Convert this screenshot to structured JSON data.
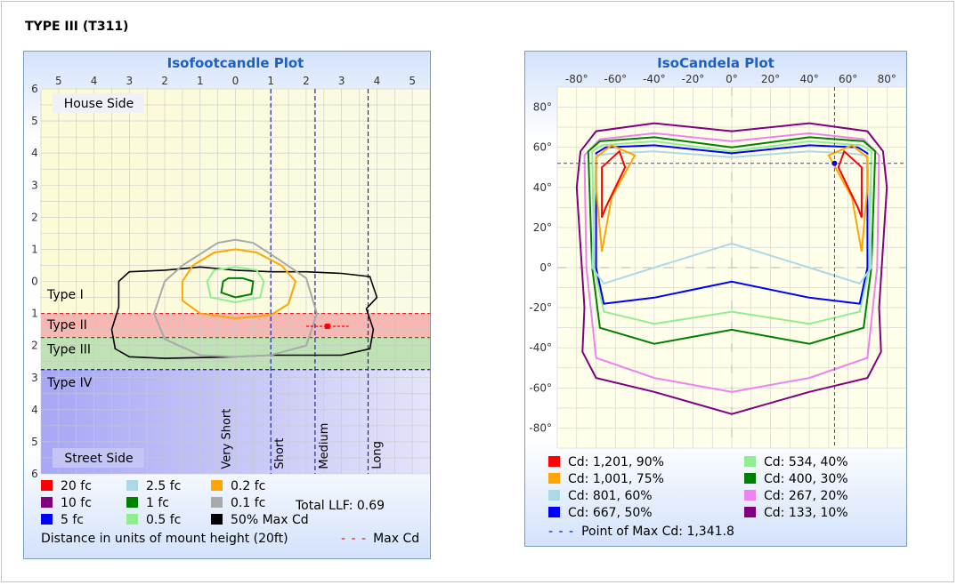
{
  "page": {
    "title": "TYPE III (T311)"
  },
  "isofootcandle": {
    "title": "Isofootcandle Plot",
    "region_labels": {
      "house": "House Side",
      "street": "Street Side"
    },
    "type_labels": [
      "Type I",
      "Type II",
      "Type III",
      "Type IV"
    ],
    "range_labels": [
      "Very Short",
      "Short",
      "Medium",
      "Long"
    ],
    "legend": [
      {
        "label": "20 fc",
        "color": "#ff0000"
      },
      {
        "label": "10 fc",
        "color": "#800080"
      },
      {
        "label": "5 fc",
        "color": "#0000ff"
      },
      {
        "label": "2.5 fc",
        "color": "#add8e6"
      },
      {
        "label": "1 fc",
        "color": "#008000"
      },
      {
        "label": "0.5 fc",
        "color": "#90ee90"
      },
      {
        "label": "0.2 fc",
        "color": "#ffa500"
      },
      {
        "label": "0.1 fc",
        "color": "#a9a9a9"
      },
      {
        "label": "50% Max Cd",
        "color": "#000000"
      }
    ],
    "total_llf": "Total LLF: 0.69",
    "distance_note": "Distance in units of mount height (20ft)",
    "max_cd_label": "Max Cd",
    "colors": {
      "type1": "#fbfbd6",
      "type2": "#f7b7b3",
      "type3": "#bfe2b5",
      "type4": "#aeaef7",
      "max_cd": "#ff0000"
    }
  },
  "isocandela": {
    "title": "IsoCandela Plot",
    "legend": [
      {
        "label": "Cd: 1,201, 90%",
        "color": "#ff0000"
      },
      {
        "label": "Cd: 1,001, 75%",
        "color": "#ffa500"
      },
      {
        "label": "Cd: 801, 60%",
        "color": "#add8e6"
      },
      {
        "label": "Cd: 667, 50%",
        "color": "#0000ff"
      },
      {
        "label": "Cd: 534, 40%",
        "color": "#90ee90"
      },
      {
        "label": "Cd: 400, 30%",
        "color": "#008000"
      },
      {
        "label": "Cd: 267, 20%",
        "color": "#ee82ee"
      },
      {
        "label": "Cd: 133, 10%",
        "color": "#800080"
      }
    ],
    "max_point_label": "Point of Max Cd: 1,341.8"
  },
  "chart_data": [
    {
      "type": "contour",
      "title": "Isofootcandle Plot",
      "xlabel": "",
      "ylabel": "",
      "x_ticks": [
        "5",
        "4",
        "3",
        "2",
        "1",
        "0",
        "1",
        "2",
        "3",
        "4",
        "5"
      ],
      "y_ticks": [
        "6",
        "5",
        "4",
        "3",
        "2",
        "1",
        "0",
        "1",
        "2",
        "3",
        "4",
        "5",
        "6"
      ],
      "xlim": [
        -5.5,
        5.5
      ],
      "ylim": [
        -6,
        6
      ],
      "type_band_limits": [
        0,
        1,
        1.75,
        2.75,
        6
      ],
      "range_lines_x": [
        1,
        2.25,
        3.75
      ],
      "max_cd_point": [
        2.6,
        1.4
      ],
      "series": [
        {
          "name": "50% Max Cd",
          "color": "#000000",
          "points": [
            [
              -3.3,
              0
            ],
            [
              -3,
              -0.3
            ],
            [
              -2,
              -0.35
            ],
            [
              -1,
              -0.45
            ],
            [
              0,
              -0.35
            ],
            [
              1,
              -0.3
            ],
            [
              2,
              -0.3
            ],
            [
              3,
              -0.25
            ],
            [
              3.8,
              -0.15
            ],
            [
              4,
              0.5
            ],
            [
              3.7,
              0.85
            ],
            [
              3.9,
              1.5
            ],
            [
              3.8,
              2.1
            ],
            [
              3,
              2.3
            ],
            [
              2,
              2.3
            ],
            [
              1,
              2.3
            ],
            [
              0,
              2.35
            ],
            [
              -2,
              2.4
            ],
            [
              -3,
              2.35
            ],
            [
              -3.4,
              2.1
            ],
            [
              -3.5,
              1.5
            ],
            [
              -3.3,
              0.8
            ]
          ]
        },
        {
          "name": "0.1 fc",
          "color": "#a9a9a9",
          "points": [
            [
              -2.3,
              1
            ],
            [
              -2,
              0
            ],
            [
              -1.5,
              -0.5
            ],
            [
              -0.5,
              -1.2
            ],
            [
              0,
              -1.3
            ],
            [
              0.5,
              -1.2
            ],
            [
              1.2,
              -0.7
            ],
            [
              2,
              -0.1
            ],
            [
              2.3,
              1
            ],
            [
              2,
              2
            ],
            [
              1,
              2.3
            ],
            [
              0,
              2.35
            ],
            [
              -1,
              2.3
            ],
            [
              -2,
              1.8
            ]
          ]
        },
        {
          "name": "0.2 fc",
          "color": "#ffa500",
          "points": [
            [
              -1.5,
              0
            ],
            [
              -1.2,
              -0.5
            ],
            [
              -0.6,
              -0.9
            ],
            [
              0,
              -1
            ],
            [
              0.6,
              -0.9
            ],
            [
              1.3,
              -0.5
            ],
            [
              1.7,
              0
            ],
            [
              1.5,
              0.7
            ],
            [
              1,
              1.05
            ],
            [
              0,
              1.15
            ],
            [
              -1,
              1.0
            ],
            [
              -1.5,
              0.6
            ]
          ]
        },
        {
          "name": "0.5 fc",
          "color": "#90ee90",
          "points": [
            [
              -0.8,
              0
            ],
            [
              -0.6,
              -0.35
            ],
            [
              0,
              -0.45
            ],
            [
              0.6,
              -0.35
            ],
            [
              0.8,
              0
            ],
            [
              0.7,
              0.5
            ],
            [
              0,
              0.65
            ],
            [
              -0.7,
              0.5
            ]
          ]
        },
        {
          "name": "1 fc",
          "color": "#008000",
          "points": [
            [
              -0.35,
              0
            ],
            [
              -0.2,
              -0.1
            ],
            [
              0.2,
              -0.1
            ],
            [
              0.5,
              0
            ],
            [
              0.45,
              0.4
            ],
            [
              0,
              0.5
            ],
            [
              -0.4,
              0.35
            ]
          ]
        }
      ]
    },
    {
      "type": "contour",
      "title": "IsoCandela Plot",
      "xlabel": "",
      "ylabel": "",
      "x_ticks": [
        "-80°",
        "-60°",
        "-40°",
        "-20°",
        "0°",
        "20°",
        "40°",
        "60°",
        "80°"
      ],
      "y_ticks": [
        "80°",
        "60°",
        "40°",
        "20°",
        "0°",
        "-20°",
        "-40°",
        "-60°",
        "-80°"
      ],
      "xlim": [
        -90,
        90
      ],
      "ylim": [
        -90,
        90
      ],
      "max_point": [
        53,
        52
      ],
      "series": [
        {
          "name": "Cd: 133, 10%",
          "color": "#800080",
          "points": [
            [
              -78,
              58
            ],
            [
              -70,
              68
            ],
            [
              -40,
              72
            ],
            [
              0,
              68
            ],
            [
              40,
              72
            ],
            [
              70,
              68
            ],
            [
              78,
              58
            ],
            [
              80,
              40
            ],
            [
              76,
              -20
            ],
            [
              77,
              -42
            ],
            [
              70,
              -55
            ],
            [
              40,
              -62
            ],
            [
              0,
              -73
            ],
            [
              -40,
              -62
            ],
            [
              -70,
              -55
            ],
            [
              -77,
              -42
            ],
            [
              -76,
              -20
            ],
            [
              -80,
              40
            ]
          ]
        },
        {
          "name": "Cd: 267, 20%",
          "color": "#ee82ee",
          "points": [
            [
              -76,
              56
            ],
            [
              -68,
              64
            ],
            [
              -40,
              67
            ],
            [
              0,
              63
            ],
            [
              40,
              67
            ],
            [
              68,
              64
            ],
            [
              76,
              56
            ],
            [
              75,
              0
            ],
            [
              70,
              -45
            ],
            [
              40,
              -55
            ],
            [
              0,
              -62
            ],
            [
              -40,
              -55
            ],
            [
              -70,
              -45
            ],
            [
              -75,
              0
            ]
          ]
        },
        {
          "name": "Cd: 400, 30%",
          "color": "#008000",
          "points": [
            [
              -74,
              58
            ],
            [
              -68,
              63
            ],
            [
              -40,
              65
            ],
            [
              0,
              60
            ],
            [
              40,
              65
            ],
            [
              68,
              63
            ],
            [
              74,
              58
            ],
            [
              72,
              0
            ],
            [
              68,
              -30
            ],
            [
              40,
              -38
            ],
            [
              0,
              -31
            ],
            [
              -40,
              -38
            ],
            [
              -68,
              -30
            ],
            [
              -72,
              0
            ]
          ]
        },
        {
          "name": "Cd: 534, 40%",
          "color": "#90ee90",
          "points": [
            [
              -72,
              58
            ],
            [
              -67,
              61
            ],
            [
              -40,
              63
            ],
            [
              0,
              58
            ],
            [
              40,
              63
            ],
            [
              67,
              61
            ],
            [
              72,
              58
            ],
            [
              71,
              0
            ],
            [
              66,
              -22
            ],
            [
              40,
              -28
            ],
            [
              0,
              -22
            ],
            [
              -40,
              -28
            ],
            [
              -66,
              -22
            ],
            [
              -71,
              0
            ]
          ]
        },
        {
          "name": "Cd: 667, 50%",
          "color": "#0000ff",
          "points": [
            [
              -70,
              57
            ],
            [
              -65,
              60
            ],
            [
              -40,
              61
            ],
            [
              0,
              57
            ],
            [
              40,
              61
            ],
            [
              65,
              60
            ],
            [
              70,
              57
            ],
            [
              70,
              0
            ],
            [
              66,
              -18
            ],
            [
              40,
              -15
            ],
            [
              0,
              -7
            ],
            [
              -40,
              -15
            ],
            [
              -66,
              -18
            ],
            [
              -70,
              0
            ]
          ]
        },
        {
          "name": "Cd: 801, 60%",
          "color": "#add8e6",
          "points": [
            [
              -70,
              56
            ],
            [
              -60,
              57
            ],
            [
              -40,
              58
            ],
            [
              0,
              55
            ],
            [
              40,
              58
            ],
            [
              60,
              57
            ],
            [
              70,
              56
            ],
            [
              72,
              0
            ],
            [
              66,
              -8
            ],
            [
              40,
              0
            ],
            [
              0,
              12
            ],
            [
              -40,
              0
            ],
            [
              -66,
              -8
            ],
            [
              -72,
              0
            ]
          ]
        },
        {
          "name": "Cd: 1,001, 75%",
          "color": "#ffa500",
          "points": [
            [
              -70,
              55
            ],
            [
              -62,
              61
            ],
            [
              -50,
              56
            ],
            [
              -62,
              35
            ],
            [
              -67,
              8
            ],
            [
              -70,
              40
            ]
          ]
        },
        {
          "name": "Cd: 1,001, 75%",
          "color": "#ffa500",
          "points": [
            [
              70,
              55
            ],
            [
              62,
              61
            ],
            [
              50,
              56
            ],
            [
              62,
              35
            ],
            [
              67,
              8
            ],
            [
              70,
              40
            ]
          ]
        },
        {
          "name": "Cd: 1,201, 90%",
          "color": "#ff0000",
          "points": [
            [
              -67,
              50
            ],
            [
              -58,
              58
            ],
            [
              -55,
              50
            ],
            [
              -65,
              30
            ],
            [
              -67,
              25
            ]
          ]
        },
        {
          "name": "Cd: 1,201, 90%",
          "color": "#ff0000",
          "points": [
            [
              67,
              50
            ],
            [
              58,
              58
            ],
            [
              55,
              50
            ],
            [
              65,
              30
            ],
            [
              67,
              25
            ]
          ]
        }
      ]
    }
  ]
}
